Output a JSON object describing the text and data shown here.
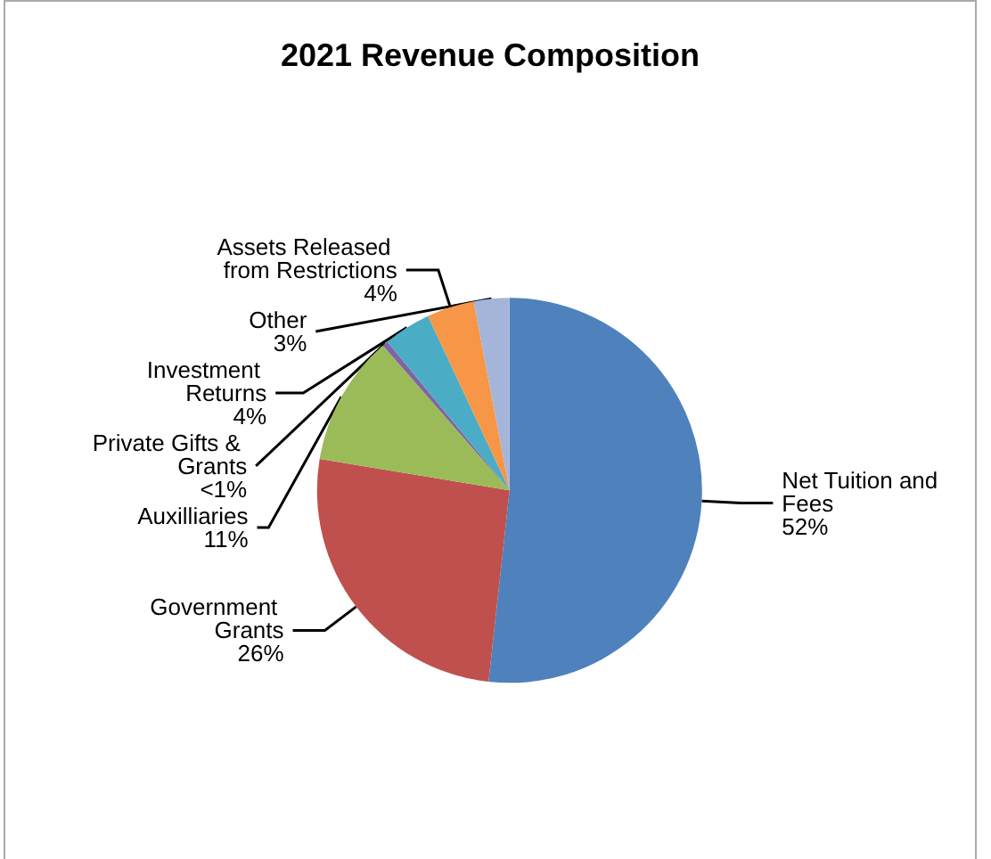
{
  "chart_data": {
    "type": "pie",
    "title": "2021 Revenue Composition",
    "categories": [
      "Net Tuition and Fees",
      "Government Grants",
      "Auxilliaries",
      "Private Gifts & Grants",
      "Investment Returns",
      "Assets Released from Restrictions",
      "Other"
    ],
    "values": [
      52,
      26,
      11,
      0.5,
      4,
      4,
      3
    ],
    "value_labels": [
      "52%",
      "26%",
      "11%",
      "<1%",
      "4%",
      "4%",
      "3%"
    ],
    "colors": [
      "#4f81bd",
      "#c0504d",
      "#9bbb59",
      "#8064a2",
      "#4bacc6",
      "#f79646",
      "#a5b5d9"
    ],
    "legend": false
  }
}
